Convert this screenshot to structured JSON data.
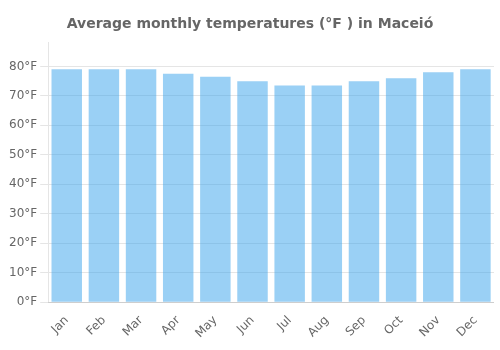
{
  "chart_data": {
    "type": "bar",
    "title": "Average monthly temperatures (°F ) in Maceió",
    "categories": [
      "Jan",
      "Feb",
      "Mar",
      "Apr",
      "May",
      "Jun",
      "Jul",
      "Aug",
      "Sep",
      "Oct",
      "Nov",
      "Dec"
    ],
    "values": [
      79.0,
      79.0,
      79.0,
      77.5,
      76.5,
      75.0,
      73.5,
      73.5,
      75.0,
      76.0,
      78.0,
      79.0
    ],
    "ylim": [
      0,
      88
    ],
    "yticks": [
      {
        "value": 0,
        "label": "0°F"
      },
      {
        "value": 10,
        "label": "10°F"
      },
      {
        "value": 20,
        "label": "20°F"
      },
      {
        "value": 30,
        "label": "30°F"
      },
      {
        "value": 40,
        "label": "40°F"
      },
      {
        "value": 50,
        "label": "50°F"
      },
      {
        "value": 60,
        "label": "60°F"
      },
      {
        "value": 70,
        "label": "70°F"
      },
      {
        "value": 80,
        "label": "80°F"
      }
    ],
    "grid": true
  }
}
